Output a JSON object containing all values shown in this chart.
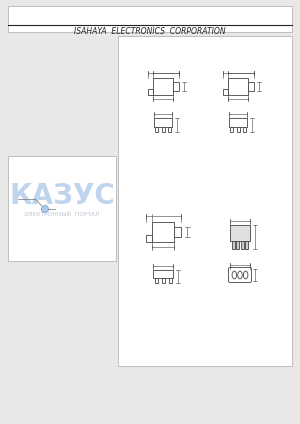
{
  "bg_color": "#e8e8e8",
  "page_bg": "#ffffff",
  "border_color": "#cccccc",
  "line_color": "#444444",
  "footer_text": "ISAHAYA  ELECTRONICS  CORPORATION",
  "footer_fontsize": 5.5,
  "watermark_text_top": "КАЗУС",
  "watermark_text_bottom": "ЭЛЕКТРОННЫЙ  ПОРТАЛ",
  "watermark_color_top": "#a8c8e8",
  "watermark_color_bottom": "#b0b8c8"
}
